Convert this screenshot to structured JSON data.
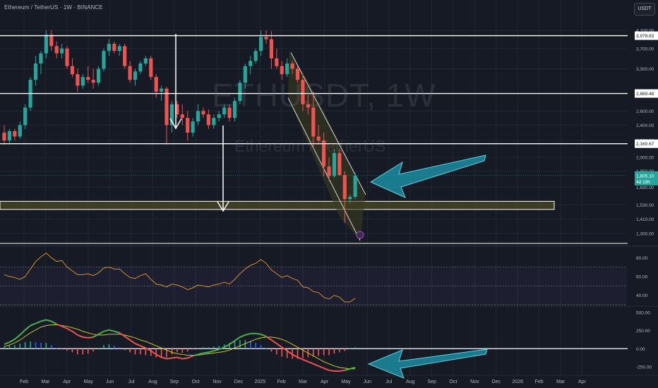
{
  "header": {
    "title": "Ethereum / TetherUS · 1W · BINANCE",
    "currency_button": "USDT"
  },
  "watermark": {
    "symbol": "ETHUSDT, 1W",
    "name": "Ethereum / TetherUS"
  },
  "colors": {
    "background": "#161a25",
    "up": "#26a69a",
    "down": "#ef5350",
    "grid": "#232733",
    "level_line": "#ffffff",
    "zone_fill": "#4a4a22",
    "channel_fill": "#3a3a1e",
    "arrow": "#1b9cb0",
    "rsi": "#d0902e",
    "macd_line": "#4caf50",
    "signal_line": "#c9c42a"
  },
  "chart_data": [
    {
      "type": "candlestick",
      "title": "Ethereum / TetherUS · 1W · BINANCE",
      "scale": "log",
      "ylim": [
        1230,
        4150
      ],
      "y_ticks": [
        "4,100.00",
        "3,700.00",
        "3,300.00",
        "2,600.00",
        "2,400.00",
        "2,200.00",
        "2,000.00",
        "1,850.00",
        "1,690.00",
        "1,530.00",
        "1,410.00",
        "1,300.00"
      ],
      "x_ticks": [
        "Feb",
        "Mar",
        "Apr",
        "May",
        "Jun",
        "Jul",
        "Aug",
        "Sep",
        "Oct",
        "Nov",
        "Dec",
        "2025",
        "Feb",
        "Mar",
        "Apr",
        "May",
        "Jun",
        "Jul",
        "Aug",
        "Sep",
        "Oct",
        "Nov",
        "Dec",
        "2026",
        "Feb",
        "Mar",
        "Apr"
      ],
      "grid": true,
      "levels": [
        {
          "label": "3,978.83",
          "value": 3978.83
        },
        {
          "label": "2,869.48",
          "value": 2869.48
        },
        {
          "label": "2,160.67",
          "value": 2160.67
        },
        {
          "label": "1,805.10",
          "value": 1805.1,
          "sub_label": "4d 19h"
        }
      ],
      "support_zone": [
        1490,
        1560
      ],
      "series": [
        {
          "ohlc": [
            [
              2300,
              2400,
              2150,
              2200
            ],
            [
              2200,
              2350,
              2150,
              2320
            ],
            [
              2320,
              2350,
              2200,
              2250
            ],
            [
              2250,
              2450,
              2220,
              2400
            ],
            [
              2400,
              2700,
              2350,
              2650
            ],
            [
              2650,
              3150,
              2600,
              3100
            ],
            [
              3100,
              3550,
              3000,
              3400
            ],
            [
              3400,
              3650,
              3200,
              3600
            ],
            [
              3600,
              4100,
              3500,
              4000
            ],
            [
              4000,
              4100,
              3650,
              3750
            ],
            [
              3750,
              3850,
              3500,
              3600
            ],
            [
              3600,
              3800,
              3500,
              3700
            ],
            [
              3700,
              3750,
              3300,
              3350
            ],
            [
              3350,
              3500,
              3150,
              3200
            ],
            [
              3200,
              3300,
              2900,
              3000
            ],
            [
              3000,
              3200,
              2950,
              3150
            ],
            [
              3150,
              3350,
              3050,
              3100
            ],
            [
              3100,
              3300,
              2950,
              3050
            ],
            [
              3050,
              3350,
              3000,
              3300
            ],
            [
              3300,
              3700,
              3250,
              3650
            ],
            [
              3650,
              3900,
              3550,
              3800
            ],
            [
              3800,
              3850,
              3600,
              3650
            ],
            [
              3650,
              3800,
              3550,
              3750
            ],
            [
              3750,
              3800,
              3300,
              3350
            ],
            [
              3350,
              3450,
              3050,
              3100
            ],
            [
              3100,
              3300,
              3000,
              3250
            ],
            [
              3250,
              3450,
              3200,
              3400
            ],
            [
              3400,
              3550,
              3350,
              3500
            ],
            [
              3500,
              3550,
              3100,
              3150
            ],
            [
              3150,
              3200,
              2800,
              2900
            ],
            [
              2900,
              3000,
              2750,
              2950
            ],
            [
              2950,
              2980,
              2150,
              2400
            ],
            [
              2400,
              2750,
              2300,
              2700
            ],
            [
              2700,
              2750,
              2500,
              2550
            ],
            [
              2550,
              2700,
              2400,
              2500
            ],
            [
              2500,
              2600,
              2200,
              2300
            ],
            [
              2300,
              2500,
              2250,
              2450
            ],
            [
              2450,
              2700,
              2400,
              2600
            ],
            [
              2600,
              2650,
              2500,
              2550
            ],
            [
              2550,
              2620,
              2350,
              2400
            ],
            [
              2400,
              2550,
              2350,
              2500
            ],
            [
              2500,
              2600,
              2450,
              2550
            ],
            [
              2550,
              2700,
              2500,
              2650
            ],
            [
              2650,
              2700,
              2450,
              2500
            ],
            [
              2500,
              2800,
              2450,
              2750
            ],
            [
              2750,
              3100,
              2700,
              3050
            ],
            [
              3050,
              3400,
              2950,
              3350
            ],
            [
              3350,
              3550,
              3200,
              3450
            ],
            [
              3450,
              3700,
              3400,
              3650
            ],
            [
              3650,
              4100,
              3550,
              3950
            ],
            [
              3950,
              4100,
              3800,
              3900
            ],
            [
              3900,
              4080,
              3300,
              3500
            ],
            [
              3500,
              3700,
              3300,
              3350
            ],
            [
              3350,
              3450,
              3100,
              3200
            ],
            [
              3200,
              3500,
              3150,
              3400
            ],
            [
              3400,
              3450,
              3200,
              3300
            ],
            [
              3300,
              3350,
              3050,
              3100
            ],
            [
              3100,
              3200,
              2600,
              2700
            ],
            [
              2700,
              2850,
              2550,
              2650
            ],
            [
              2650,
              2900,
              2100,
              2250
            ],
            [
              2250,
              2400,
              2150,
              2200
            ],
            [
              2200,
              2300,
              1800,
              1900
            ],
            [
              1900,
              2000,
              1750,
              1800
            ],
            [
              1800,
              2100,
              1780,
              2050
            ],
            [
              2050,
              2100,
              1800,
              1810
            ],
            [
              1810,
              1850,
              1380,
              1580
            ],
            [
              1580,
              1620,
              1540,
              1600
            ],
            [
              1600,
              1830,
              1580,
              1805
            ]
          ]
        }
      ]
    },
    {
      "type": "line",
      "title": "",
      "ylim": [
        30,
        90
      ],
      "y_ticks": [
        "80.00",
        "60.00",
        "40.00"
      ],
      "bands": [
        70,
        50,
        30
      ],
      "series": [
        {
          "values": [
            62,
            60,
            59,
            57,
            60,
            68,
            76,
            81,
            85,
            80,
            76,
            77,
            70,
            66,
            62,
            62,
            63,
            61,
            64,
            69,
            70,
            68,
            68,
            63,
            59,
            58,
            61,
            63,
            57,
            52,
            51,
            49,
            52,
            51,
            49,
            46,
            48,
            51,
            50,
            49,
            51,
            52,
            54,
            52,
            57,
            63,
            68,
            72,
            74,
            78,
            74,
            67,
            63,
            59,
            61,
            58,
            56,
            49,
            48,
            44,
            43,
            38,
            36,
            40,
            38,
            33,
            33,
            37
          ]
        }
      ]
    },
    {
      "type": "line",
      "title": "",
      "ylim": [
        -330,
        560
      ],
      "y_ticks": [
        "500.00",
        "250.00",
        "0.00",
        "-250.00"
      ],
      "series": [
        {
          "values": [
            60,
            90,
            130,
            190,
            260,
            320,
            350,
            380,
            400,
            380,
            340,
            310,
            280,
            240,
            190,
            160,
            150,
            160,
            200,
            240,
            260,
            240,
            220,
            170,
            120,
            70,
            40,
            10,
            -30,
            -80,
            -120,
            -140,
            -130,
            -120,
            -140,
            -130,
            -100,
            -80,
            -60,
            -50,
            -30,
            -10,
            20,
            60,
            110,
            160,
            190,
            210,
            210,
            200,
            170,
            120,
            70,
            20,
            -30,
            -80,
            -120,
            -150,
            -180,
            -210,
            -240,
            -270,
            -300,
            -310,
            -310,
            -300,
            -280,
            -260
          ]
        },
        {
          "values": [
            30,
            50,
            80,
            120,
            170,
            220,
            260,
            300,
            320,
            330,
            330,
            320,
            310,
            290,
            270,
            240,
            220,
            200,
            190,
            190,
            200,
            200,
            200,
            190,
            170,
            150,
            120,
            100,
            70,
            40,
            10,
            -20,
            -50,
            -70,
            -80,
            -90,
            -90,
            -90,
            -80,
            -70,
            -60,
            -50,
            -40,
            -20,
            10,
            40,
            70,
            100,
            130,
            150,
            160,
            160,
            150,
            130,
            100,
            60,
            20,
            -20,
            -60,
            -100,
            -140,
            -180,
            -210,
            -240,
            -260,
            -270,
            -280,
            -280
          ]
        },
        {
          "values": [
            30,
            40,
            50,
            70,
            90,
            100,
            90,
            80,
            80,
            50,
            10,
            -10,
            -30,
            -50,
            -80,
            -80,
            -70,
            -40,
            10,
            50,
            60,
            40,
            20,
            -20,
            -50,
            -80,
            -80,
            -90,
            -100,
            -120,
            -130,
            -120,
            -80,
            -50,
            -60,
            -40,
            -10,
            10,
            20,
            20,
            30,
            40,
            60,
            80,
            100,
            120,
            120,
            110,
            80,
            50,
            10,
            -40,
            -80,
            -110,
            -130,
            -140,
            -140,
            -130,
            -120,
            -110,
            -100,
            -90,
            -90,
            -70,
            -50,
            -30,
            0,
            20
          ]
        }
      ]
    }
  ]
}
